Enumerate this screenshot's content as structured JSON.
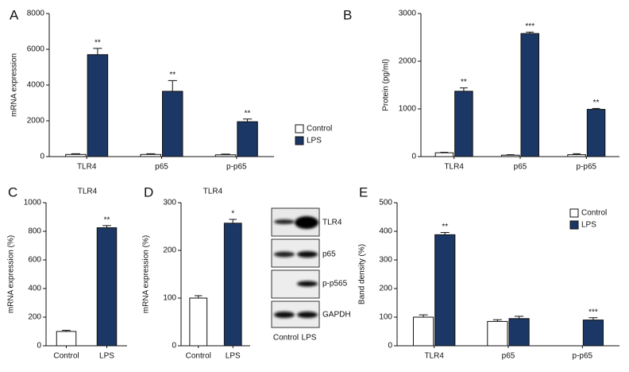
{
  "chart_data": [
    {
      "type": "bar",
      "panel": "A",
      "ylabel": "mRNA expression",
      "categories": [
        "TLR4",
        "p65",
        "p-p65"
      ],
      "series": [
        {
          "name": "Control",
          "color": "#ffffff",
          "values": [
            120,
            120,
            100
          ],
          "errors": [
            40,
            40,
            40
          ],
          "annotations": [
            null,
            null,
            null
          ]
        },
        {
          "name": "LPS",
          "color": "#1b3765",
          "values": [
            5700,
            3650,
            1950
          ],
          "errors": [
            350,
            600,
            150
          ],
          "annotations": [
            "**",
            "**",
            "**"
          ]
        }
      ],
      "ylim": [
        0,
        8000
      ],
      "yticks": [
        0,
        2000,
        4000,
        6000,
        8000
      ],
      "legend": "right"
    },
    {
      "type": "bar",
      "panel": "B",
      "ylabel": "Protein (pg/ml)",
      "categories": [
        "TLR4",
        "p65",
        "p-p65"
      ],
      "series": [
        {
          "name": "Control",
          "color": "#ffffff",
          "values": [
            80,
            30,
            40
          ],
          "errors": [
            10,
            10,
            20
          ],
          "annotations": [
            null,
            null,
            null
          ]
        },
        {
          "name": "LPS",
          "color": "#1b3765",
          "values": [
            1370,
            2580,
            990
          ],
          "errors": [
            70,
            30,
            20
          ],
          "annotations": [
            "**",
            "***",
            "**"
          ]
        }
      ],
      "ylim": [
        0,
        3000
      ],
      "yticks": [
        0,
        1000,
        2000,
        3000
      ]
    },
    {
      "type": "bar",
      "panel": "C",
      "title": "TLR4",
      "ylabel": "mRNA expression (%)",
      "categories": [
        "Control",
        "LPS"
      ],
      "values": [
        100,
        825
      ],
      "errors": [
        8,
        15
      ],
      "annotations": [
        null,
        "**"
      ],
      "colors": [
        "#ffffff",
        "#1b3765"
      ],
      "ylim": [
        0,
        1000
      ],
      "yticks": [
        0,
        200,
        400,
        600,
        800,
        1000
      ]
    },
    {
      "type": "bar",
      "panel": "D",
      "title": "TLR4",
      "ylabel": "mRNA expression (%)",
      "categories": [
        "Control",
        "LPS"
      ],
      "values": [
        100,
        257
      ],
      "errors": [
        5,
        8
      ],
      "annotations": [
        null,
        "*"
      ],
      "colors": [
        "#ffffff",
        "#1b3765"
      ],
      "ylim": [
        0,
        300
      ],
      "yticks": [
        0,
        100,
        200,
        300
      ]
    },
    {
      "type": "bar",
      "panel": "E",
      "ylabel": "Band density (%)",
      "categories": [
        "TLR4",
        "p65",
        "p-p65"
      ],
      "series": [
        {
          "name": "Control",
          "color": "#ffffff",
          "values": [
            100,
            85,
            0
          ],
          "errors": [
            8,
            6,
            0
          ],
          "annotations": [
            null,
            null,
            null
          ]
        },
        {
          "name": "LPS",
          "color": "#1b3765",
          "values": [
            388,
            95,
            90
          ],
          "errors": [
            8,
            8,
            8
          ],
          "annotations": [
            "**",
            null,
            "***"
          ]
        }
      ],
      "ylim": [
        0,
        500
      ],
      "yticks": [
        0,
        100,
        200,
        300,
        400,
        500
      ],
      "legend": "upper right"
    }
  ],
  "blot": {
    "labels": [
      "TLR4",
      "p65",
      "p-p565",
      "GAPDH"
    ],
    "lanes": [
      "Control",
      "LPS"
    ]
  }
}
